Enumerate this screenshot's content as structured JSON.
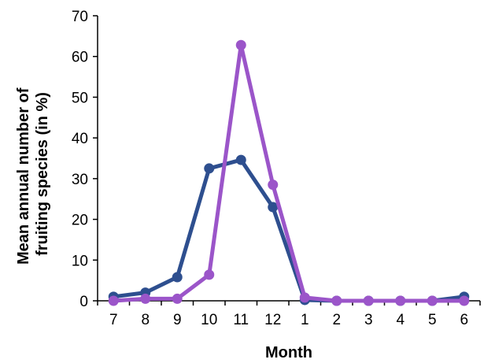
{
  "chart_data": {
    "type": "line",
    "categories": [
      "7",
      "8",
      "9",
      "10",
      "11",
      "12",
      "1",
      "2",
      "3",
      "4",
      "5",
      "6"
    ],
    "xlabel": "Month",
    "ylabel_lines": [
      "Mean annual number of",
      "fruiting species (in %)"
    ],
    "ylim": [
      0,
      70
    ],
    "yticks": [
      0,
      10,
      20,
      30,
      40,
      50,
      60,
      70
    ],
    "grid": false,
    "legend": "none",
    "series": [
      {
        "color": "#2e4f8f",
        "values": [
          1.0,
          2.0,
          5.8,
          32.5,
          34.6,
          23.0,
          0.2,
          0.0,
          0.0,
          0.0,
          0.0,
          1.0
        ]
      },
      {
        "color": "#9b55c9",
        "values": [
          0.0,
          0.5,
          0.5,
          6.4,
          62.8,
          28.5,
          0.8,
          0.0,
          0.0,
          0.0,
          0.0,
          0.0
        ]
      }
    ]
  }
}
